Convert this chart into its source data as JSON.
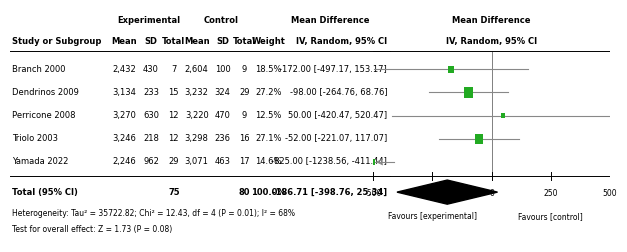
{
  "studies": [
    "Branch 2000",
    "Dendrinos 2009",
    "Perricone 2008",
    "Triolo 2003",
    "Yamada 2022"
  ],
  "exp_mean": [
    "2,432",
    "3,134",
    "3,270",
    "3,246",
    "2,246"
  ],
  "exp_sd": [
    430,
    233,
    630,
    218,
    962
  ],
  "exp_total": [
    7,
    15,
    12,
    12,
    29
  ],
  "ctrl_mean": [
    "2,604",
    "3,232",
    "3,220",
    "3,298",
    "3,071"
  ],
  "ctrl_sd": [
    100,
    324,
    470,
    236,
    463
  ],
  "ctrl_total": [
    9,
    29,
    9,
    16,
    17
  ],
  "weight": [
    "18.5%",
    "27.2%",
    "12.5%",
    "27.1%",
    "14.6%"
  ],
  "md": [
    -172.0,
    -98.0,
    50.0,
    -52.0,
    -825.0
  ],
  "ci_lower": [
    -497.17,
    -264.76,
    -420.47,
    -221.07,
    -1238.56
  ],
  "ci_upper": [
    153.17,
    68.76,
    520.47,
    117.07,
    -411.44
  ],
  "md_text": [
    "-172.00 [-497.17, 153.17]",
    "-98.00 [-264.76, 68.76]",
    "50.00 [-420.47, 520.47]",
    "-52.00 [-221.07, 117.07]",
    "-825.00 [-1238.56, -411.44]"
  ],
  "total_n_exp": 75,
  "total_n_ctrl": 80,
  "total_weight": "100.0%",
  "total_md": -186.71,
  "total_ci_lower": -398.76,
  "total_ci_upper": 25.34,
  "total_md_text": "-186.71 [-398.76, 25.34]",
  "heterogeneity_text": "Heterogeneity: Tau² = 35722.82; Chi² = 12.43, df = 4 (P = 0.01); I² = 68%",
  "overall_effect_text": "Test for overall effect: Z = 1.73 (P = 0.08)",
  "axis_min": -500,
  "axis_max": 500,
  "axis_ticks": [
    -500,
    -250,
    0,
    250,
    500
  ],
  "diamond_color": "#000000",
  "square_color": "#22aa22",
  "line_color": "#888888",
  "weight_vals": [
    18.5,
    27.2,
    12.5,
    27.1,
    14.6
  ]
}
